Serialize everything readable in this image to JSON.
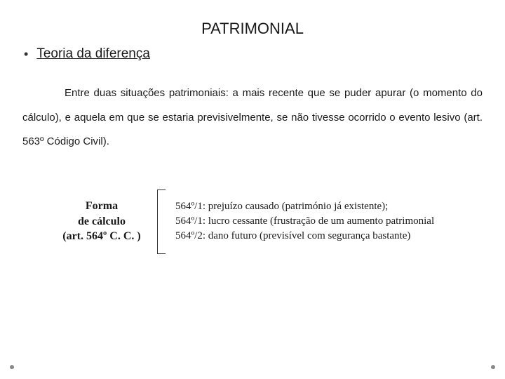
{
  "title": "PATRIMONIAL",
  "subtitle": "Teoria da diferença",
  "paragraph": "Entre duas situações patrimoniais: a mais recente que se puder apurar (o momento do cálculo), e aquela em que se estaria previsivelmente, se não tivesse ocorrido o evento lesivo (art. 563º Código Civil).",
  "label": {
    "line1": "Forma",
    "line2": "de cálculo",
    "line3": "(art. 564º C. C. )"
  },
  "items": {
    "i0": "564º/1: prejuízo causado (património já existente);",
    "i1": "564º/1: lucro cessante (frustração de um aumento patrimonial",
    "i2": "564º/2: dano futuro (previsível com segurança bastante)"
  },
  "colors": {
    "text": "#1a1a1a",
    "dot": "#8a8a8a",
    "background": "#ffffff"
  }
}
